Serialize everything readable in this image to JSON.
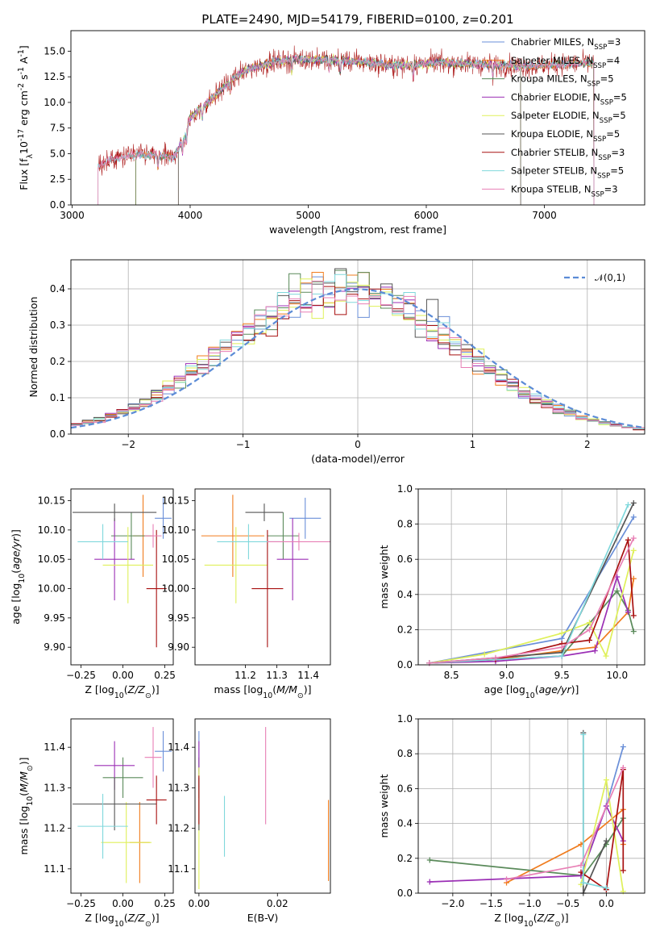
{
  "figure_title": "PLATE=2490, MJD=54179, FIBERID=0100, z=0.201",
  "colors": [
    "#6a8fd8",
    "#f07c1e",
    "#5a8a5a",
    "#9b2fb5",
    "#dff05a",
    "#555555",
    "#a81010",
    "#80d8dc",
    "#e87fb5"
  ],
  "chart_data": [
    {
      "id": "spectrum",
      "type": "line",
      "title": "PLATE=2490, MJD=54179, FIBERID=0100, z=0.201",
      "xlabel": "wavelength [Angstrom, rest frame]",
      "ylabel": "Flux [f$_\\lambda$10$^{-17}$ erg cm$^{-2}$ s$^{-1}$ A$^{-1}$]",
      "xlim": [
        2990,
        7850
      ],
      "ylim": [
        0,
        17
      ],
      "xticks": [
        3000,
        4000,
        5000,
        6000,
        7000
      ],
      "yticks": [
        0.0,
        2.5,
        5.0,
        7.5,
        10.0,
        12.5,
        15.0
      ],
      "legend_position": "upper right",
      "continuum_knots": {
        "x": [
          3220,
          3300,
          3500,
          3700,
          3850,
          3950,
          4000,
          4100,
          4200,
          4300,
          4400,
          4500,
          4700,
          4900,
          5100,
          5300,
          5500,
          5700,
          5900,
          6100,
          6300,
          6500,
          6700,
          6900,
          7100,
          7300,
          7400
        ],
        "y": [
          3.8,
          4.3,
          4.9,
          4.9,
          4.6,
          6.5,
          8.5,
          9.5,
          10.5,
          11.7,
          12.6,
          13.3,
          13.9,
          14.2,
          14.2,
          14.1,
          13.9,
          13.6,
          13.7,
          13.9,
          13.8,
          13.7,
          13.6,
          13.5,
          13.7,
          13.8,
          13.8
        ]
      },
      "series": [
        {
          "name": "Chabrier MILES, N$_{SSP}$=3",
          "xrange": [
            3540,
            7420
          ]
        },
        {
          "name": "Salpeter MILES, N$_{SSP}$=4",
          "xrange": [
            3540,
            7420
          ]
        },
        {
          "name": "Kroupa MILES, N$_{SSP}$=5",
          "xrange": [
            3540,
            7420
          ]
        },
        {
          "name": "Chabrier ELODIE, N$_{SSP}$=5",
          "xrange": [
            3900,
            6800
          ]
        },
        {
          "name": "Salpeter ELODIE, N$_{SSP}$=5",
          "xrange": [
            3900,
            6800
          ]
        },
        {
          "name": "Kroupa ELODIE, N$_{SSP}$=5",
          "xrange": [
            3900,
            6800
          ]
        },
        {
          "name": "Chabrier STELIB, N$_{SSP}$=3",
          "xrange": [
            3220,
            7420
          ]
        },
        {
          "name": "Salpeter STELIB, N$_{SSP}$=5",
          "xrange": [
            3220,
            7420
          ]
        },
        {
          "name": "Kroupa STELIB, N$_{SSP}$=3",
          "xrange": [
            3220,
            7420
          ]
        }
      ]
    },
    {
      "id": "residuals",
      "type": "line",
      "xlabel": "(data-model)/error",
      "ylabel": "Normed distribution",
      "xlim": [
        -2.5,
        2.5
      ],
      "ylim": [
        0,
        0.48
      ],
      "xticks": [
        -2,
        -1,
        0,
        1,
        2
      ],
      "yticks": [
        0.0,
        0.1,
        0.2,
        0.3,
        0.4
      ],
      "grid": true,
      "legend_position": "upper right",
      "reference_curve": "$\\mathcal{N}(0,1)$",
      "bin_width": 0.1,
      "histograms": 9
    },
    {
      "id": "age_vs_Z",
      "type": "scatter",
      "xlabel": "Z [log$_{10}$($Z/Z_\\odot$)]",
      "ylabel": "age  [log$_{10}$($age/yr$)]",
      "xlim": [
        -0.31,
        0.3
      ],
      "ylim": [
        9.87,
        10.17
      ],
      "xticks": [
        -0.25,
        0.0,
        0.25
      ],
      "xticklabels": [
        "−0.25",
        "0.00",
        "0.25"
      ],
      "yticks": [
        9.9,
        9.95,
        10.0,
        10.05,
        10.1,
        10.15
      ],
      "points": [
        {
          "x": 0.24,
          "xerr": 0.05,
          "y": 10.12,
          "yerr": 0.035
        },
        {
          "x": 0.12,
          "xerr": 0.06,
          "y": 10.09,
          "yerr": 0.07
        },
        {
          "x": 0.05,
          "xerr": 0.12,
          "y": 10.09,
          "yerr": 0.04
        },
        {
          "x": -0.05,
          "xerr": 0.12,
          "y": 10.05,
          "yerr": 0.07
        },
        {
          "x": 0.03,
          "xerr": 0.15,
          "y": 10.04,
          "yerr": 0.065
        },
        {
          "x": -0.05,
          "xerr": 0.25,
          "y": 10.13,
          "yerr": 0.015
        },
        {
          "x": 0.2,
          "xerr": 0.06,
          "y": 10.0,
          "yerr": 0.1
        },
        {
          "x": -0.12,
          "xerr": 0.15,
          "y": 10.08,
          "yerr": 0.03
        },
        {
          "x": 0.18,
          "xerr": 0.05,
          "y": 10.09,
          "yerr": 0.02
        }
      ]
    },
    {
      "id": "age_vs_mass",
      "type": "scatter",
      "xlabel": "mass [log$_{10}$($M/M_\\odot$)]",
      "ylabel": "",
      "xlim": [
        11.04,
        11.47
      ],
      "ylim": [
        9.87,
        10.17
      ],
      "xticks": [
        11.2,
        11.3,
        11.4
      ],
      "yticks": [
        9.9,
        9.95,
        10.0,
        10.05,
        10.1,
        10.15
      ],
      "points": [
        {
          "x": 11.39,
          "xerr": 0.05,
          "y": 10.12,
          "yerr": 0.035
        },
        {
          "x": 11.16,
          "xerr": 0.1,
          "y": 10.09,
          "yerr": 0.07
        },
        {
          "x": 11.32,
          "xerr": 0.05,
          "y": 10.09,
          "yerr": 0.04
        },
        {
          "x": 11.35,
          "xerr": 0.05,
          "y": 10.05,
          "yerr": 0.07
        },
        {
          "x": 11.17,
          "xerr": 0.1,
          "y": 10.04,
          "yerr": 0.065
        },
        {
          "x": 11.26,
          "xerr": 0.06,
          "y": 10.13,
          "yerr": 0.015
        },
        {
          "x": 11.27,
          "xerr": 0.05,
          "y": 10.0,
          "yerr": 0.1
        },
        {
          "x": 11.21,
          "xerr": 0.1,
          "y": 10.08,
          "yerr": 0.03
        },
        {
          "x": 11.37,
          "xerr": 0.1,
          "y": 10.08,
          "yerr": 0.015
        }
      ]
    },
    {
      "id": "weight_vs_age",
      "type": "line",
      "xlabel": "age  [log$_{10}$($age/yr$)]",
      "ylabel": "mass weight",
      "xlim": [
        8.2,
        10.25
      ],
      "ylim": [
        0,
        1.0
      ],
      "xticks": [
        8.5,
        9.0,
        9.5,
        10.0
      ],
      "yticks": [
        0.0,
        0.2,
        0.4,
        0.6,
        0.8,
        1.0
      ],
      "grid": true,
      "series": [
        {
          "x": [
            8.3,
            9.5,
            10.15
          ],
          "y": [
            0.01,
            0.15,
            0.84
          ]
        },
        {
          "x": [
            8.3,
            8.9,
            9.5,
            9.8,
            10.1,
            10.15
          ],
          "y": [
            0.01,
            0.03,
            0.08,
            0.1,
            0.3,
            0.49
          ]
        },
        {
          "x": [
            8.3,
            8.9,
            9.5,
            10.0,
            10.1,
            10.15
          ],
          "y": [
            0.01,
            0.03,
            0.05,
            0.42,
            0.31,
            0.19
          ]
        },
        {
          "x": [
            8.3,
            8.9,
            9.5,
            9.8,
            10.0,
            10.1
          ],
          "y": [
            0.01,
            0.02,
            0.05,
            0.08,
            0.5,
            0.3
          ]
        },
        {
          "x": [
            8.3,
            8.8,
            9.5,
            9.75,
            9.9,
            10.15
          ],
          "y": [
            0.01,
            0.06,
            0.18,
            0.24,
            0.05,
            0.65
          ]
        },
        {
          "x": [
            8.3,
            9.5,
            10.15
          ],
          "y": [
            0.01,
            0.07,
            0.92
          ]
        },
        {
          "x": [
            8.3,
            8.9,
            9.5,
            9.75,
            10.1,
            10.15
          ],
          "y": [
            0.01,
            0.03,
            0.12,
            0.14,
            0.71,
            0.28
          ]
        },
        {
          "x": [
            8.3,
            9.5,
            10.1
          ],
          "y": [
            0.01,
            0.05,
            0.91
          ]
        },
        {
          "x": [
            8.3,
            8.9,
            9.5,
            9.75,
            10.15
          ],
          "y": [
            0.01,
            0.04,
            0.1,
            0.2,
            0.72
          ]
        }
      ]
    },
    {
      "id": "mass_vs_Z",
      "type": "scatter",
      "xlabel": "Z [log$_{10}$($Z/Z_\\odot$)]",
      "ylabel": "mass [log$_{10}$($M/M_\\odot$)]",
      "xlim": [
        -0.31,
        0.3
      ],
      "ylim": [
        11.04,
        11.47
      ],
      "xticks": [
        -0.25,
        0.0,
        0.25
      ],
      "xticklabels": [
        "−0.25",
        "0.00",
        "0.25"
      ],
      "yticks": [
        11.1,
        11.2,
        11.3,
        11.4
      ],
      "points": [
        {
          "x": 0.24,
          "xerr": 0.05,
          "y": 11.39,
          "yerr": 0.05
        },
        {
          "x": 0.1,
          "xerr": 0.06,
          "y": 11.165,
          "yerr": 0.1
        },
        {
          "x": 0.0,
          "xerr": 0.12,
          "y": 11.325,
          "yerr": 0.05
        },
        {
          "x": -0.05,
          "xerr": 0.12,
          "y": 11.355,
          "yerr": 0.06
        },
        {
          "x": 0.02,
          "xerr": 0.15,
          "y": 11.165,
          "yerr": 0.1
        },
        {
          "x": -0.05,
          "xerr": 0.25,
          "y": 11.26,
          "yerr": 0.065
        },
        {
          "x": 0.2,
          "xerr": 0.06,
          "y": 11.27,
          "yerr": 0.06
        },
        {
          "x": -0.12,
          "xerr": 0.15,
          "y": 11.205,
          "yerr": 0.08
        },
        {
          "x": 0.18,
          "xerr": 0.05,
          "y": 11.375,
          "yerr": 0.075
        }
      ]
    },
    {
      "id": "mass_vs_EBV",
      "type": "scatter",
      "xlabel": "E(B-V)",
      "ylabel": "",
      "xlim": [
        -0.001,
        0.0335
      ],
      "ylim": [
        11.04,
        11.47
      ],
      "xticks": [
        0.0,
        0.02
      ],
      "xticklabels": [
        "0.00",
        "0.02"
      ],
      "yticks": [
        11.1,
        11.2,
        11.3,
        11.4
      ],
      "points": [
        {
          "x": 0.0,
          "y": 11.39,
          "yerr": 0.05
        },
        {
          "x": 0.033,
          "y": 11.17,
          "yerr": 0.1
        },
        {
          "x": 0.0,
          "y": 11.325,
          "yerr": 0.05
        },
        {
          "x": 0.0,
          "y": 11.355,
          "yerr": 0.06
        },
        {
          "x": 0.0,
          "y": 11.2,
          "yerr": 0.15
        },
        {
          "x": 0.0,
          "y": 11.26,
          "yerr": 0.065
        },
        {
          "x": 0.0,
          "y": 11.27,
          "yerr": 0.06
        },
        {
          "x": 0.0065,
          "y": 11.205,
          "yerr": 0.075
        },
        {
          "x": 0.017,
          "y": 11.33,
          "yerr": 0.12
        }
      ]
    },
    {
      "id": "weight_vs_Z",
      "type": "line",
      "xlabel": "Z [log$_{10}$($Z/Z_\\odot$)]",
      "ylabel": "mass weight",
      "xlim": [
        -2.45,
        0.5
      ],
      "ylim": [
        0,
        1.0
      ],
      "xticks": [
        -2.0,
        -1.5,
        -1.0,
        -0.5,
        0.0
      ],
      "xticklabels": [
        "−2.0",
        "−1.5",
        "−1.0",
        "−0.5",
        "0.0"
      ],
      "yticks": [
        0.0,
        0.2,
        0.4,
        0.6,
        0.8,
        1.0
      ],
      "grid": true,
      "series": [
        {
          "x": [
            -0.33,
            0.0,
            0.22
          ],
          "y": [
            0.1,
            0.5,
            0.84
          ]
        },
        {
          "x": [
            -1.3,
            -0.33,
            0.22,
            0.22
          ],
          "y": [
            0.06,
            0.28,
            0.48,
            0.28
          ]
        },
        {
          "x": [
            -2.3,
            -0.3,
            0.0,
            0.22
          ],
          "y": [
            0.19,
            0.1,
            0.28,
            0.43
          ]
        },
        {
          "x": [
            -2.3,
            -0.33,
            0.0,
            0.22
          ],
          "y": [
            0.065,
            0.1,
            0.5,
            0.3
          ]
        },
        {
          "x": [
            -0.33,
            0.0,
            0.22
          ],
          "y": [
            0.05,
            0.65,
            0.01
          ]
        },
        {
          "x": [
            -0.3,
            -0.3,
            0.0
          ],
          "y": [
            0.92,
            0.0,
            0.3
          ]
        },
        {
          "x": [
            -0.33,
            0.0,
            0.22,
            0.22
          ],
          "y": [
            0.12,
            0.02,
            0.71,
            0.13
          ]
        },
        {
          "x": [
            -0.3,
            -0.3,
            0.0
          ],
          "y": [
            0.91,
            0.06,
            0.03
          ]
        },
        {
          "x": [
            -1.3,
            -0.33,
            0.22
          ],
          "y": [
            0.08,
            0.16,
            0.72
          ]
        }
      ]
    }
  ]
}
